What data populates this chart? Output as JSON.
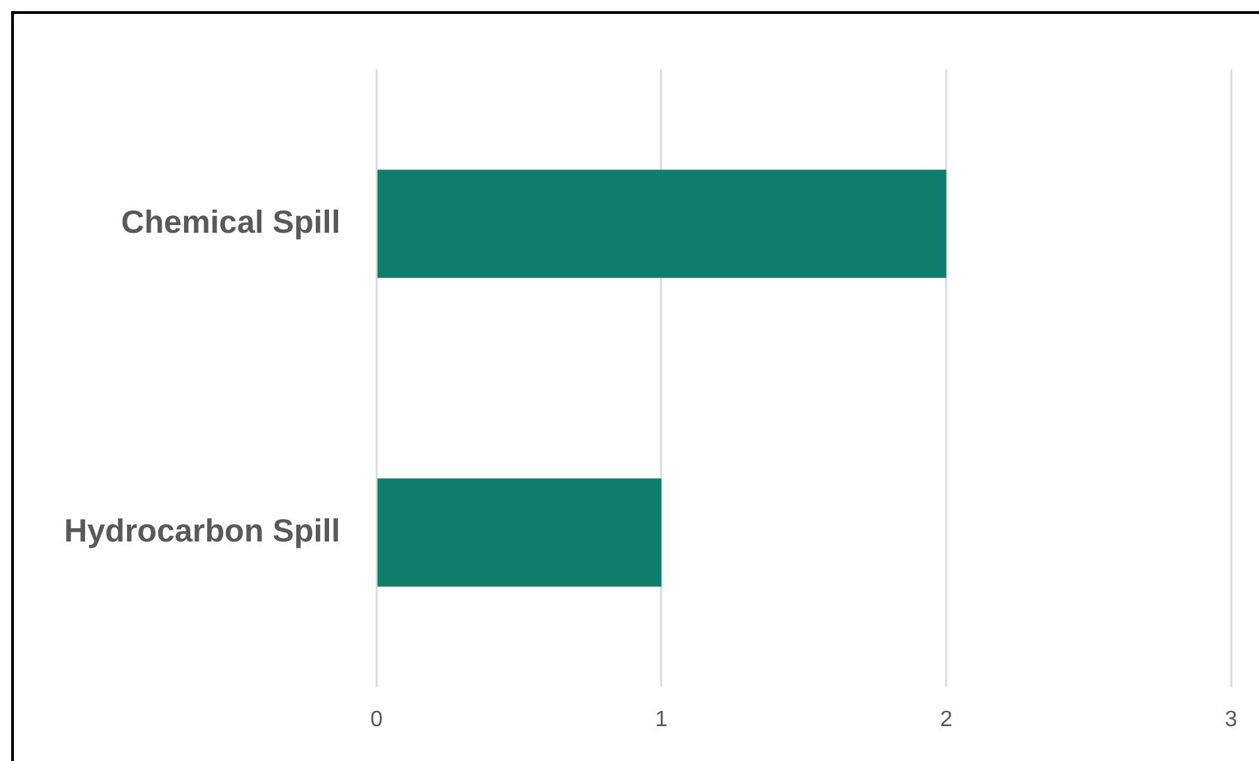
{
  "chart_data": {
    "type": "bar",
    "orientation": "horizontal",
    "categories": [
      "Chemical Spill",
      "Hydrocarbon Spill"
    ],
    "values": [
      2,
      1
    ],
    "color": "#0f7d6c",
    "xlim": [
      0,
      3
    ],
    "xticks": [
      0,
      1,
      2,
      3
    ],
    "grid": "x",
    "legend": false
  }
}
